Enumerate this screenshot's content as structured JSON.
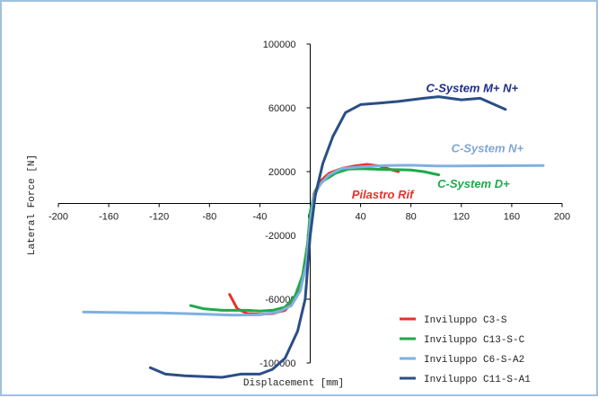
{
  "chart_data": {
    "type": "line",
    "title": "",
    "xlabel": "Displacement [mm]",
    "ylabel": "Lateral Force [N]",
    "xlim": [
      -200,
      200
    ],
    "ylim": [
      -100000,
      100000
    ],
    "x_ticks": [
      -200,
      -160,
      -120,
      -80,
      -40,
      0,
      40,
      80,
      120,
      160,
      200
    ],
    "y_ticks": [
      -100000,
      -60000,
      -20000,
      20000,
      60000,
      100000
    ],
    "grid": false,
    "legend_position": "bottom-right",
    "series": [
      {
        "name": "Inviluppo C3-S",
        "color": "#e8302a",
        "points": [
          [
            -64,
            -57000
          ],
          [
            -58,
            -66000
          ],
          [
            -50,
            -69000
          ],
          [
            -40,
            -69500
          ],
          [
            -30,
            -69000
          ],
          [
            -20,
            -67000
          ],
          [
            -12,
            -60000
          ],
          [
            -6,
            -45000
          ],
          [
            -2,
            -25000
          ],
          [
            0,
            -8000
          ],
          [
            3,
            6000
          ],
          [
            8,
            14000
          ],
          [
            15,
            19000
          ],
          [
            25,
            22000
          ],
          [
            35,
            23500
          ],
          [
            45,
            24500
          ],
          [
            55,
            23500
          ],
          [
            65,
            21000
          ],
          [
            70,
            20000
          ]
        ]
      },
      {
        "name": "Inviluppo C13-S-C",
        "color": "#1daa4a",
        "points": [
          [
            -95,
            -64000
          ],
          [
            -85,
            -66000
          ],
          [
            -70,
            -67000
          ],
          [
            -50,
            -67000
          ],
          [
            -40,
            -67500
          ],
          [
            -30,
            -67000
          ],
          [
            -20,
            -65000
          ],
          [
            -12,
            -58000
          ],
          [
            -6,
            -45000
          ],
          [
            -2,
            -25000
          ],
          [
            0,
            -5000
          ],
          [
            4,
            8000
          ],
          [
            10,
            14000
          ],
          [
            20,
            19000
          ],
          [
            30,
            21500
          ],
          [
            40,
            21800
          ],
          [
            50,
            21500
          ],
          [
            60,
            21300
          ],
          [
            70,
            21200
          ],
          [
            80,
            21000
          ],
          [
            90,
            20000
          ],
          [
            102,
            18000
          ]
        ]
      },
      {
        "name": "Inviluppo C6-S-A2",
        "color": "#7fb0e0",
        "points": [
          [
            -180,
            -68000
          ],
          [
            -160,
            -68300
          ],
          [
            -140,
            -68500
          ],
          [
            -120,
            -68600
          ],
          [
            -100,
            -69000
          ],
          [
            -80,
            -69500
          ],
          [
            -60,
            -70000
          ],
          [
            -40,
            -69800
          ],
          [
            -25,
            -68000
          ],
          [
            -15,
            -64000
          ],
          [
            -8,
            -55000
          ],
          [
            -3,
            -38000
          ],
          [
            0,
            -12000
          ],
          [
            3,
            5000
          ],
          [
            8,
            12000
          ],
          [
            15,
            18000
          ],
          [
            25,
            22000
          ],
          [
            40,
            23000
          ],
          [
            60,
            23800
          ],
          [
            80,
            24000
          ],
          [
            100,
            23500
          ],
          [
            130,
            23600
          ],
          [
            160,
            23700
          ],
          [
            185,
            23800
          ]
        ]
      },
      {
        "name": "Inviluppo C11-S-A1",
        "color": "#2b4e86",
        "points": [
          [
            -127,
            -103000
          ],
          [
            -115,
            -107000
          ],
          [
            -100,
            -108000
          ],
          [
            -85,
            -108500
          ],
          [
            -70,
            -109000
          ],
          [
            -55,
            -107000
          ],
          [
            -40,
            -107000
          ],
          [
            -30,
            -104000
          ],
          [
            -20,
            -97000
          ],
          [
            -10,
            -80000
          ],
          [
            -4,
            -60000
          ],
          [
            0,
            -20000
          ],
          [
            4,
            5000
          ],
          [
            10,
            25000
          ],
          [
            18,
            42000
          ],
          [
            28,
            57000
          ],
          [
            40,
            62000
          ],
          [
            55,
            63000
          ],
          [
            70,
            64000
          ],
          [
            90,
            66000
          ],
          [
            102,
            67000
          ],
          [
            120,
            65000
          ],
          [
            135,
            66000
          ],
          [
            155,
            59000
          ]
        ]
      }
    ],
    "annotations": [
      {
        "text": "C-System  M+ N+",
        "color": "#1f2d8a",
        "x": 92,
        "y": 70000
      },
      {
        "text": "C-System  N+",
        "color": "#7fa6d6",
        "x": 112,
        "y": 32000
      },
      {
        "text": "C-System  D+",
        "color": "#1daa4a",
        "x": 101,
        "y": 10000
      },
      {
        "text": "Pilastro Rif",
        "color": "#e8302a",
        "x": 33,
        "y": 3000
      }
    ]
  }
}
